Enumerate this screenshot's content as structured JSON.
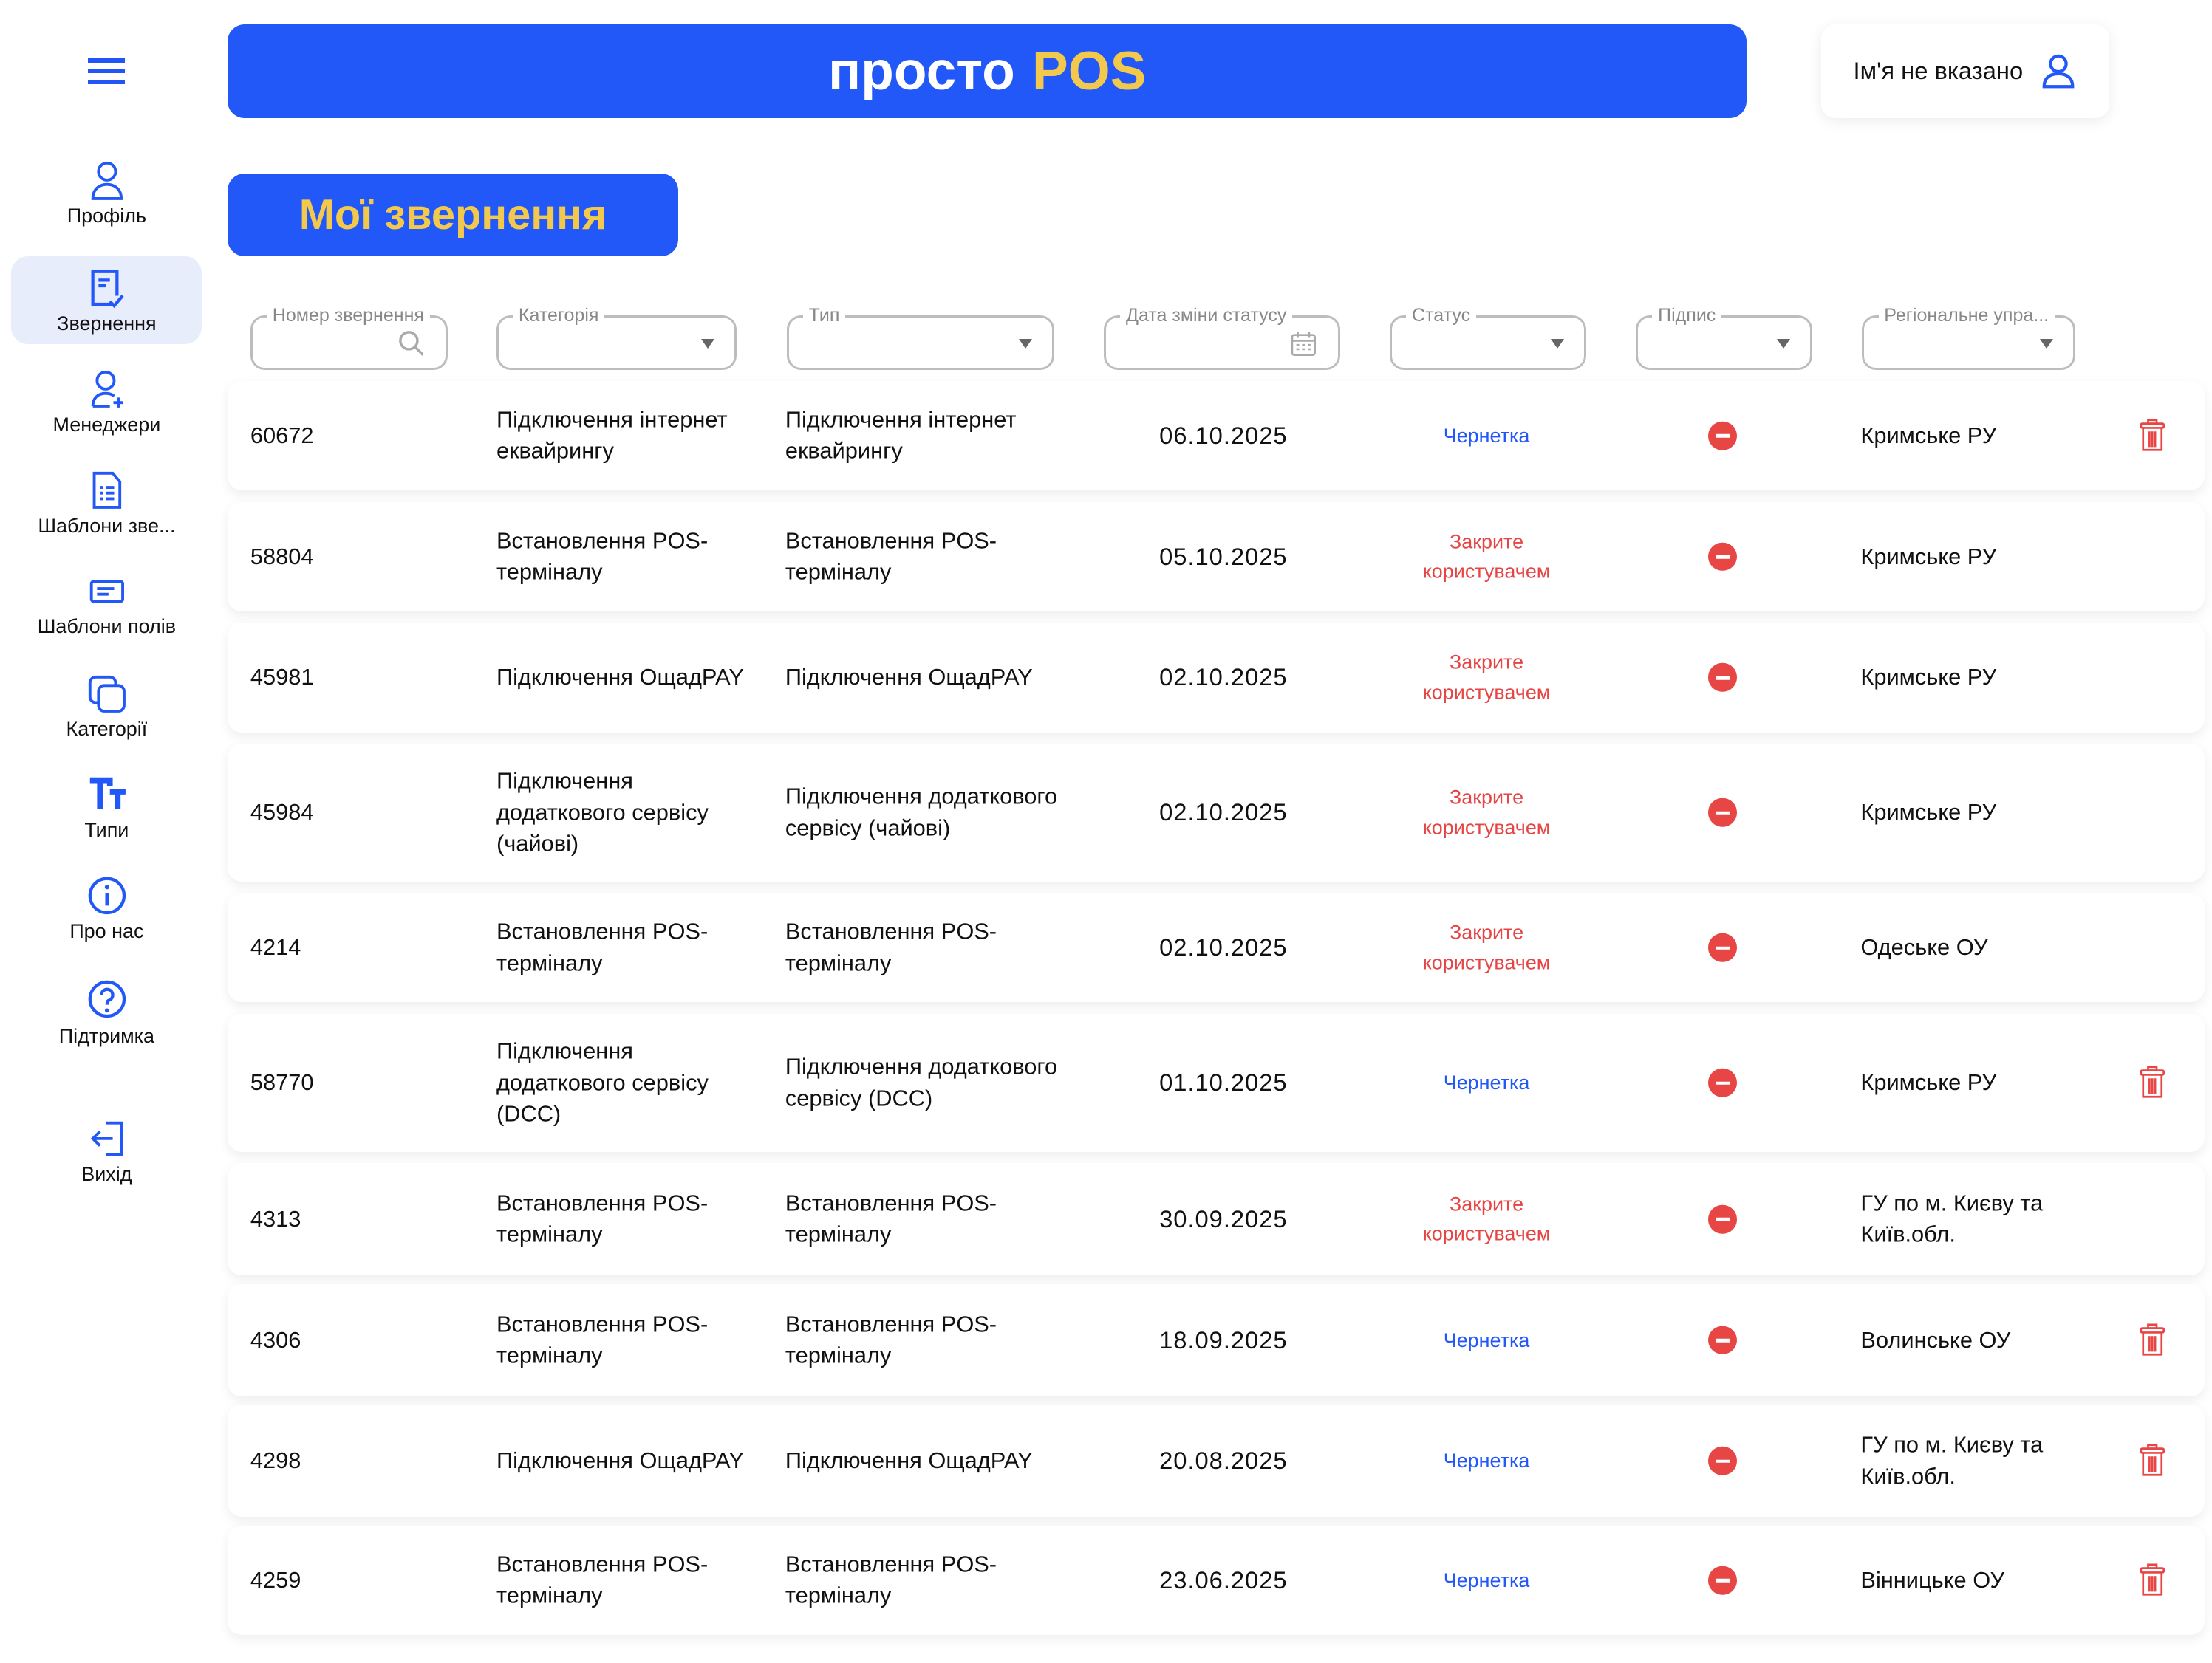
{
  "header": {
    "brand_main": "просто",
    "brand_accent": "POS",
    "user_name": "Ім'я не вказано"
  },
  "page_title": "Мої звернення",
  "sidebar": {
    "items": [
      {
        "label": "Профіль",
        "icon": "user-icon"
      },
      {
        "label": "Звернення",
        "icon": "document-check-icon",
        "active": true
      },
      {
        "label": "Менеджери",
        "icon": "user-add-icon"
      },
      {
        "label": "Шаблони зве...",
        "icon": "document-list-icon"
      },
      {
        "label": "Шаблони полів",
        "icon": "form-field-icon"
      },
      {
        "label": "Категорії",
        "icon": "copy-icon"
      },
      {
        "label": "Типи",
        "icon": "text-type-icon"
      },
      {
        "label": "Про нас",
        "icon": "info-icon"
      },
      {
        "label": "Підтримка",
        "icon": "help-icon"
      },
      {
        "label": "Вихід",
        "icon": "logout-icon"
      }
    ]
  },
  "filters": [
    {
      "label": "Номер звернення",
      "kind": "search"
    },
    {
      "label": "Категорія",
      "kind": "select"
    },
    {
      "label": "Тип",
      "kind": "select"
    },
    {
      "label": "Дата зміни статусу",
      "kind": "date"
    },
    {
      "label": "Статус",
      "kind": "select"
    },
    {
      "label": "Підпис",
      "kind": "select"
    },
    {
      "label": "Регіональне упра...",
      "kind": "select"
    }
  ],
  "colors": {
    "primary": "#2257f8",
    "accent": "#f2c94c",
    "danger": "#e84545"
  },
  "rows": [
    {
      "number": "60672",
      "category": "Підключення інтернет еквайрингу",
      "type": "Підключення інтернет еквайрингу",
      "date": "06.10.2025",
      "status": "Чернетка",
      "status_kind": "draft",
      "region": "Кримське РУ",
      "deletable": true
    },
    {
      "number": "58804",
      "category": "Встановлення POS-терміналу",
      "type": "Встановлення POS-терміналу",
      "date": "05.10.2025",
      "status": "Закрите користувачем",
      "status_kind": "closed",
      "region": "Кримське РУ",
      "deletable": false
    },
    {
      "number": "45981",
      "category": "Підключення ОщадPAY",
      "type": "Підключення ОщадPAY",
      "date": "02.10.2025",
      "status": "Закрите користувачем",
      "status_kind": "closed",
      "region": "Кримське РУ",
      "deletable": false
    },
    {
      "number": "45984",
      "category": "Підключення додаткового сервісу (чайові)",
      "type": "Підключення додаткового сервісу (чайові)",
      "date": "02.10.2025",
      "status": "Закрите користувачем",
      "status_kind": "closed",
      "region": "Кримське РУ",
      "deletable": false
    },
    {
      "number": "4214",
      "category": "Встановлення POS-терміналу",
      "type": "Встановлення POS-терміналу",
      "date": "02.10.2025",
      "status": "Закрите користувачем",
      "status_kind": "closed",
      "region": "Одеське ОУ",
      "deletable": false
    },
    {
      "number": "58770",
      "category": "Підключення додаткового сервісу (DCC)",
      "type": "Підключення додаткового сервісу (DCC)",
      "date": "01.10.2025",
      "status": "Чернетка",
      "status_kind": "draft",
      "region": "Кримське РУ",
      "deletable": true
    },
    {
      "number": "4313",
      "category": "Встановлення POS-терміналу",
      "type": "Встановлення POS-терміналу",
      "date": "30.09.2025",
      "status": "Закрите користувачем",
      "status_kind": "closed",
      "region": "ГУ по м. Києву та Київ.обл.",
      "deletable": false
    },
    {
      "number": "4306",
      "category": "Встановлення POS-терміналу",
      "type": "Встановлення POS-терміналу",
      "date": "18.09.2025",
      "status": "Чернетка",
      "status_kind": "draft",
      "region": "Волинське ОУ",
      "deletable": true
    },
    {
      "number": "4298",
      "category": "Підключення ОщадPAY",
      "type": "Підключення ОщадPAY",
      "date": "20.08.2025",
      "status": "Чернетка",
      "status_kind": "draft",
      "region": "ГУ по м. Києву та Київ.обл.",
      "deletable": true
    },
    {
      "number": "4259",
      "category": "Встановлення POS-терміналу",
      "type": "Встановлення POS-терміналу",
      "date": "23.06.2025",
      "status": "Чернетка",
      "status_kind": "draft",
      "region": "Вінницьке ОУ",
      "deletable": true
    }
  ]
}
